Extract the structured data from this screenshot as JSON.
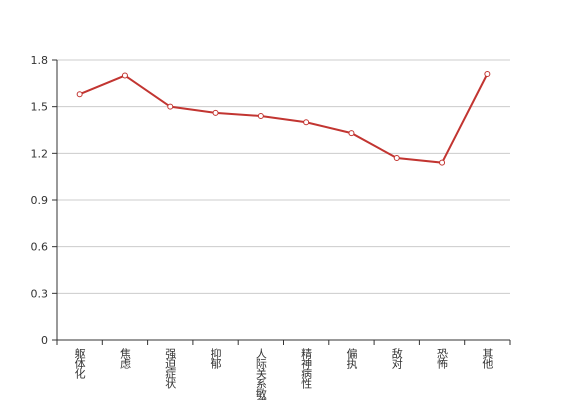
{
  "chart_data": {
    "type": "line",
    "categories": [
      "躯体化",
      "焦虑",
      "强迫症状",
      "抑郁",
      "人际关系敏感",
      "精神病性",
      "偏执",
      "敌对",
      "恐怖",
      "其他"
    ],
    "values": [
      1.58,
      1.7,
      1.5,
      1.46,
      1.44,
      1.4,
      1.33,
      1.17,
      1.14,
      1.71
    ],
    "color": "#c23531",
    "ylim": [
      0,
      1.8
    ],
    "yticks": [
      0,
      0.3,
      0.6,
      0.9,
      1.2,
      1.5,
      1.8
    ],
    "grid": true
  }
}
